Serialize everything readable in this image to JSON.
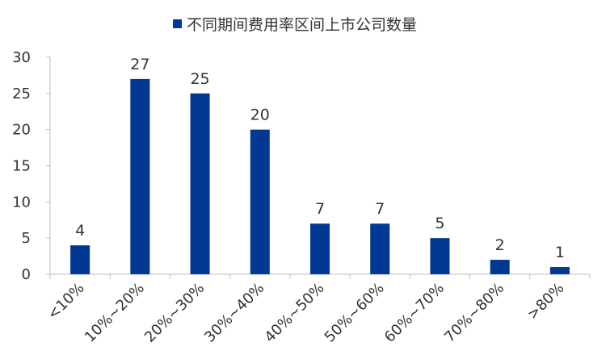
{
  "chart_data": {
    "type": "bar",
    "title": "",
    "xlabel": "",
    "ylabel": "",
    "categories": [
      "<10%",
      "10%~20%",
      "20%~30%",
      "30%~40%",
      "40%~50%",
      "50%~60%",
      "60%~70%",
      "70%~80%",
      ">80%"
    ],
    "series": [
      {
        "name": "不同期间费用率区间上市公司数量",
        "values": [
          4,
          27,
          25,
          20,
          7,
          7,
          5,
          2,
          1
        ],
        "color": "#003893"
      }
    ],
    "ylim": [
      0,
      30
    ],
    "yticks": [
      0,
      5,
      10,
      15,
      20,
      25,
      30
    ],
    "grid": false,
    "legend_position": "top-center",
    "data_labels": true
  }
}
